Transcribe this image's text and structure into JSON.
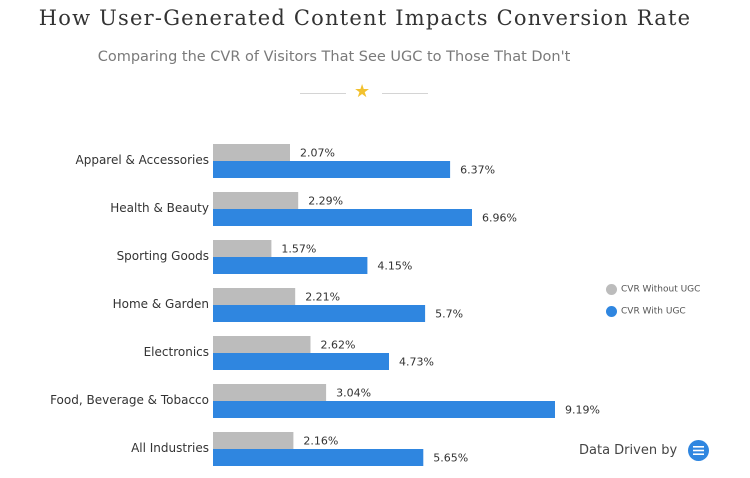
{
  "title": "How User-Generated Content Impacts Conversion Rate",
  "subtitle": "Comparing the CVR of Visitors That See UGC to Those That Don't",
  "divider_icon": "star-icon",
  "legend": {
    "without_label": "CVR Without UGC",
    "with_label": "CVR With UGC"
  },
  "brand": {
    "text": "Data Driven by",
    "logo_icon": "yotpo-logo-icon"
  },
  "colors": {
    "without_ugc": "#bcbcbc",
    "with_ugc": "#2f86e0",
    "star": "#f2c12e"
  },
  "chart_data": {
    "type": "bar",
    "orientation": "horizontal",
    "title": "How User-Generated Content Impacts Conversion Rate",
    "subtitle": "Comparing the CVR of Visitors That See UGC to Those That Don't",
    "categories": [
      "Apparel & Accessories",
      "Health & Beauty",
      "Sporting Goods",
      "Home & Garden",
      "Electronics",
      "Food, Beverage & Tobacco",
      "All Industries"
    ],
    "series": [
      {
        "name": "CVR Without UGC",
        "color": "#bcbcbc",
        "values": [
          2.07,
          2.29,
          1.57,
          2.21,
          2.62,
          3.04,
          2.16
        ],
        "labels": [
          "2.07%",
          "2.29%",
          "1.57%",
          "2.21%",
          "2.62%",
          "3.04%",
          "2.16%"
        ]
      },
      {
        "name": "CVR With UGC",
        "color": "#2f86e0",
        "values": [
          6.37,
          6.96,
          4.15,
          5.7,
          4.73,
          9.19,
          5.65
        ],
        "labels": [
          "6.37%",
          "6.96%",
          "4.15%",
          "5.7%",
          "4.73%",
          "9.19%",
          "5.65%"
        ]
      }
    ],
    "xlim": [
      0,
      9.19
    ],
    "grid": false,
    "legend_position": "right"
  }
}
